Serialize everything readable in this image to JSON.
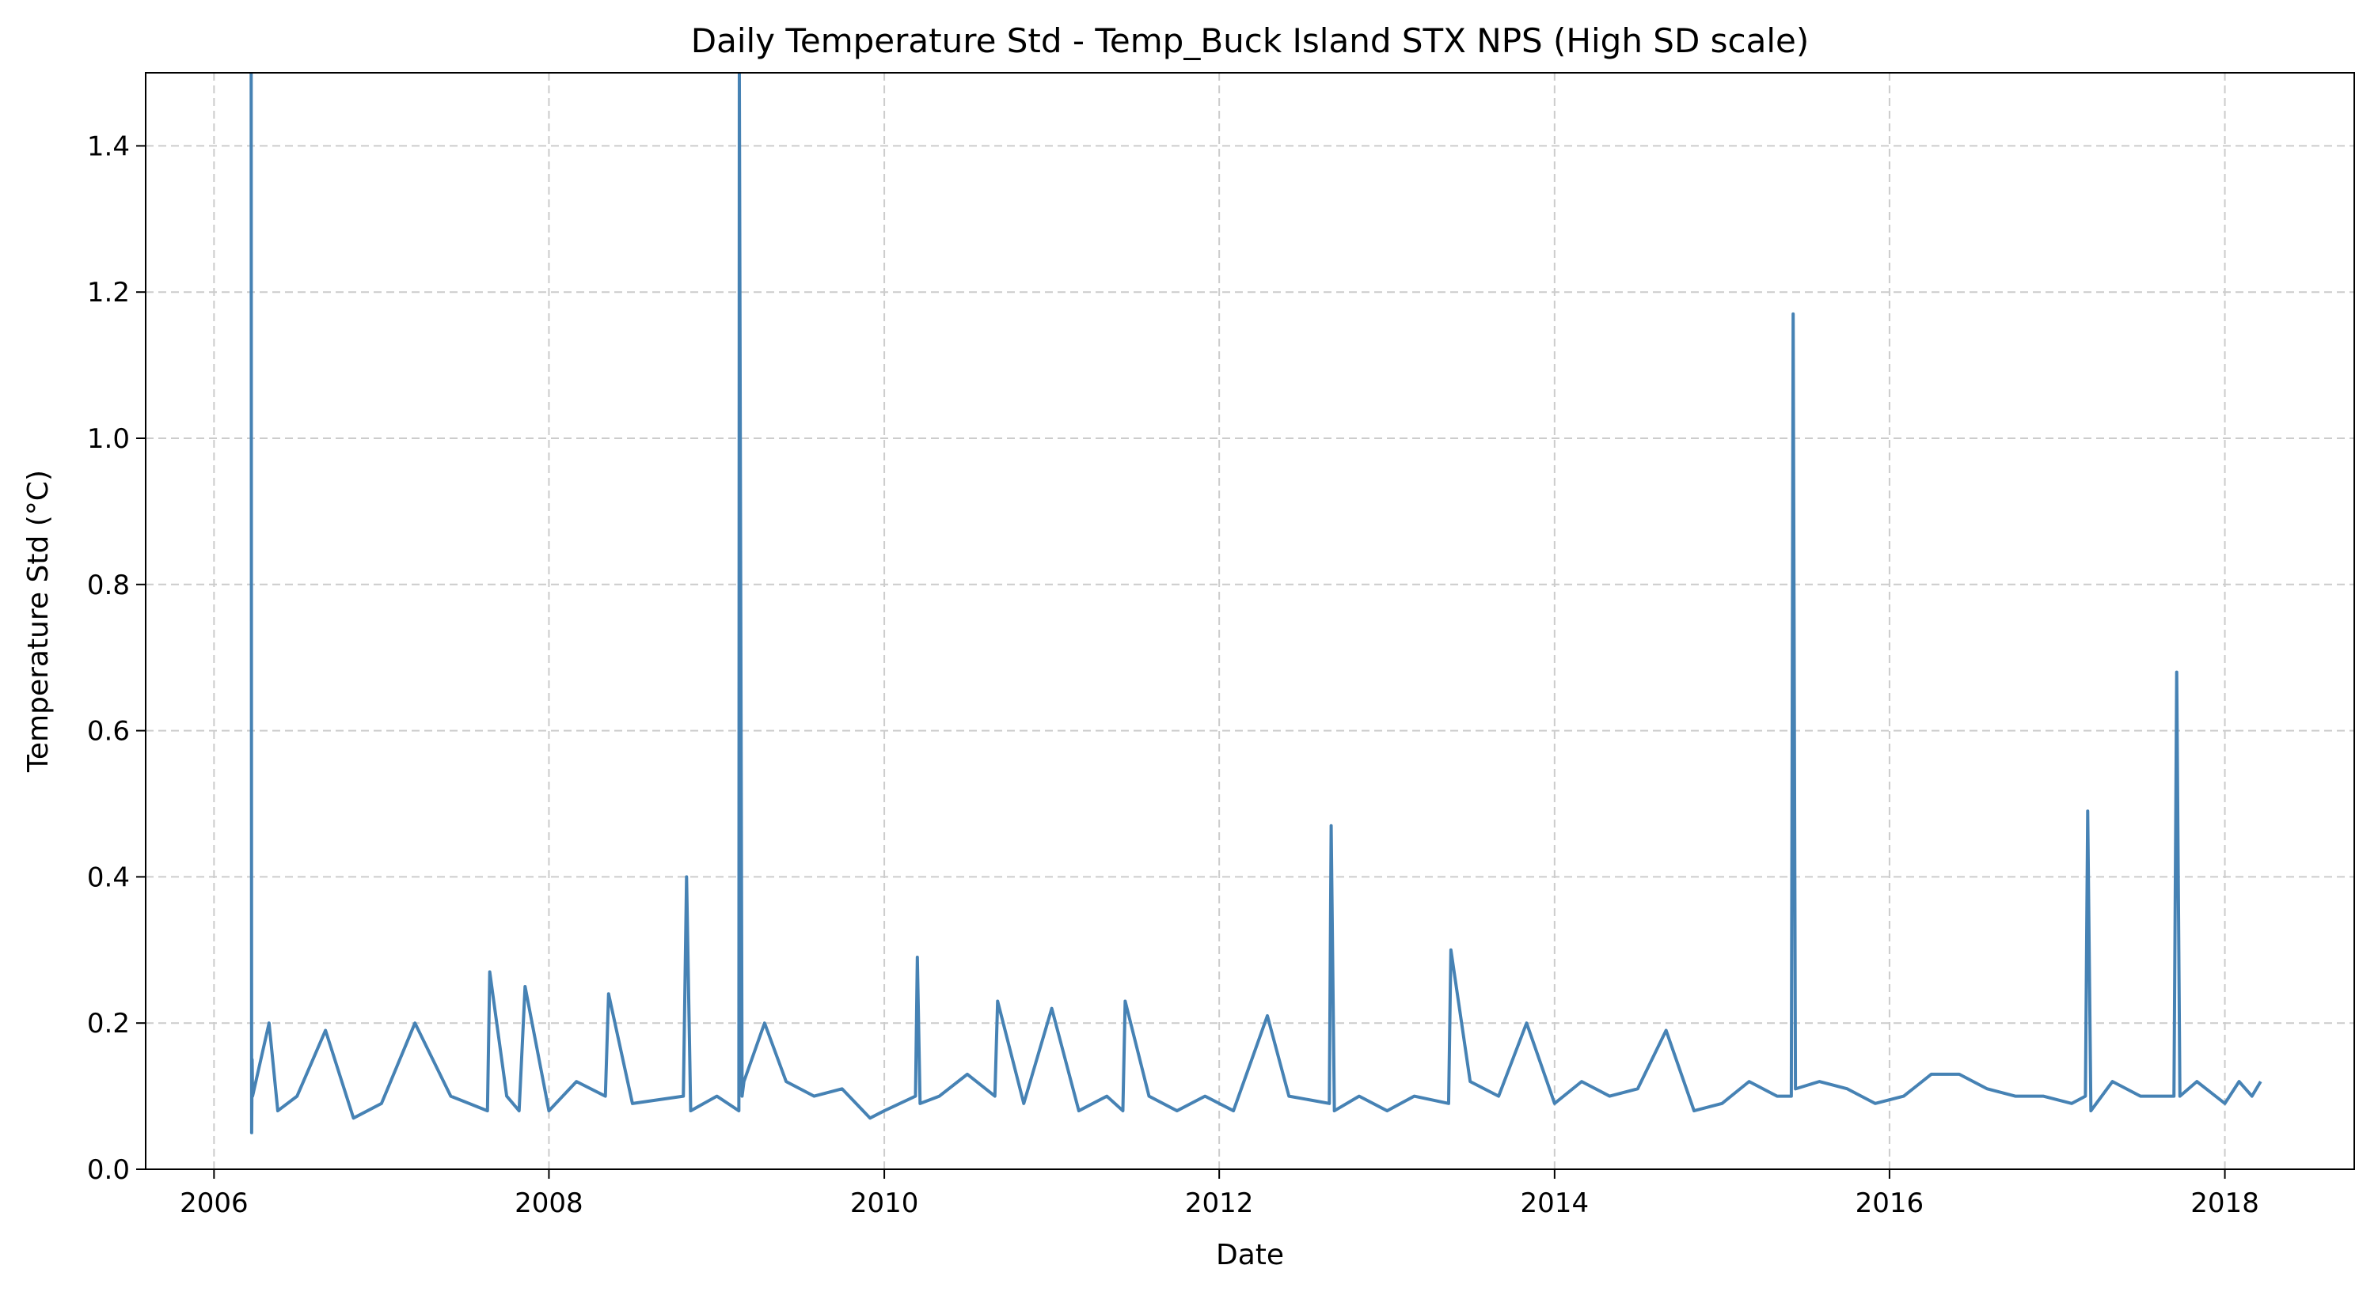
{
  "chart_data": {
    "type": "line",
    "title": "Daily Temperature Std - Temp_Buck Island STX NPS (High SD scale)",
    "xlabel": "Date",
    "ylabel": "Temperature Std (°C)",
    "xlim": [
      "2005-08-05",
      "2018-10-10"
    ],
    "ylim": [
      0,
      1.5
    ],
    "x_ticks": [
      "2006-01-01",
      "2008-01-01",
      "2010-01-01",
      "2012-01-01",
      "2014-01-01",
      "2016-01-01",
      "2018-01-01"
    ],
    "x_tick_labels": [
      "2006",
      "2008",
      "2010",
      "2012",
      "2014",
      "2016",
      "2018"
    ],
    "y_ticks": [
      0.0,
      0.2,
      0.4,
      0.6,
      0.8,
      1.0,
      1.2,
      1.4
    ],
    "y_tick_labels": [
      "0.0",
      "0.2",
      "0.4",
      "0.6",
      "0.8",
      "1.0",
      "1.2",
      "1.4"
    ],
    "grid": true,
    "grid_style": "dashed",
    "line_color": "#4682b4",
    "series": [
      {
        "x": [
          "2006-03-23",
          "2006-03-24",
          "2006-03-25",
          "2006-03-26",
          "2006-05-01",
          "2006-05-20",
          "2006-07-01",
          "2006-09-01",
          "2006-11-01",
          "2007-01-01",
          "2007-03-15",
          "2007-06-01",
          "2007-08-20",
          "2007-08-25",
          "2007-10-01",
          "2007-10-28",
          "2007-11-10",
          "2008-01-01",
          "2008-03-01",
          "2008-05-03",
          "2008-05-10",
          "2008-07-01",
          "2008-10-20",
          "2008-10-27",
          "2008-11-05",
          "2009-01-01",
          "2009-02-18",
          "2009-02-19",
          "2009-02-25",
          "2009-03-01",
          "2009-04-15",
          "2009-06-01",
          "2009-08-01",
          "2009-10-01",
          "2009-12-01",
          "2010-01-01",
          "2010-03-10",
          "2010-03-14",
          "2010-03-20",
          "2010-05-01",
          "2010-07-01",
          "2010-08-30",
          "2010-09-05",
          "2010-11-01",
          "2011-01-01",
          "2011-03-01",
          "2011-05-01",
          "2011-06-05",
          "2011-06-10",
          "2011-08-01",
          "2011-10-01",
          "2011-12-01",
          "2012-02-01",
          "2012-04-15",
          "2012-06-01",
          "2012-08-28",
          "2012-09-01",
          "2012-09-08",
          "2012-11-01",
          "2013-01-01",
          "2013-03-01",
          "2013-05-15",
          "2013-05-20",
          "2013-07-01",
          "2013-09-01",
          "2013-11-01",
          "2014-01-01",
          "2014-03-01",
          "2014-05-01",
          "2014-07-01",
          "2014-09-01",
          "2014-11-01",
          "2015-01-01",
          "2015-03-01",
          "2015-05-01",
          "2015-06-01",
          "2015-06-05",
          "2015-06-10",
          "2015-08-01",
          "2015-10-01",
          "2015-12-01",
          "2016-02-01",
          "2016-04-01",
          "2016-06-01",
          "2016-08-01",
          "2016-10-01",
          "2016-12-01",
          "2017-02-01",
          "2017-03-03",
          "2017-03-08",
          "2017-03-15",
          "2017-05-01",
          "2017-07-01",
          "2017-09-12",
          "2017-09-18",
          "2017-09-25",
          "2017-11-01",
          "2018-01-01",
          "2018-02-01",
          "2018-03-01",
          "2018-03-20"
        ],
        "y": [
          1.5,
          0.05,
          0.15,
          0.1,
          0.2,
          0.08,
          0.1,
          0.19,
          0.07,
          0.09,
          0.2,
          0.1,
          0.08,
          0.27,
          0.1,
          0.08,
          0.25,
          0.08,
          0.12,
          0.1,
          0.24,
          0.09,
          0.1,
          0.4,
          0.08,
          0.1,
          0.08,
          1.5,
          0.1,
          0.12,
          0.2,
          0.12,
          0.1,
          0.11,
          0.07,
          0.08,
          0.1,
          0.29,
          0.09,
          0.1,
          0.13,
          0.1,
          0.23,
          0.09,
          0.22,
          0.08,
          0.1,
          0.08,
          0.23,
          0.1,
          0.08,
          0.1,
          0.08,
          0.21,
          0.1,
          0.09,
          0.47,
          0.08,
          0.1,
          0.08,
          0.1,
          0.09,
          0.3,
          0.12,
          0.1,
          0.2,
          0.09,
          0.12,
          0.1,
          0.11,
          0.19,
          0.08,
          0.09,
          0.12,
          0.1,
          0.1,
          1.17,
          0.11,
          0.12,
          0.11,
          0.09,
          0.1,
          0.13,
          0.13,
          0.11,
          0.1,
          0.1,
          0.09,
          0.1,
          0.49,
          0.08,
          0.12,
          0.1,
          0.1,
          0.68,
          0.1,
          0.12,
          0.09,
          0.12,
          0.1,
          0.12
        ]
      }
    ]
  }
}
